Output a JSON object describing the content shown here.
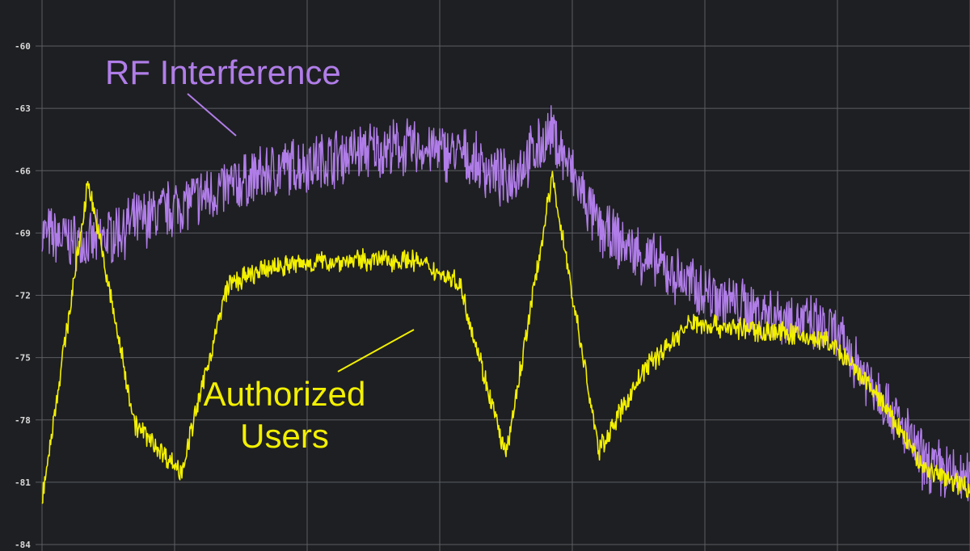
{
  "chart_data": {
    "type": "line",
    "title": "",
    "xlabel": "",
    "ylabel": "",
    "ylim": [
      -84,
      -60
    ],
    "y_ticks": [
      "-60",
      "-63",
      "-66",
      "-69",
      "-72",
      "-75",
      "-78",
      "-81",
      "-84"
    ],
    "grid": true,
    "background": "#1e1f22",
    "grid_color": "#5a5d63",
    "x": [
      0,
      5,
      10,
      15,
      20,
      25,
      30,
      35,
      40,
      45,
      50,
      55,
      60,
      65,
      70,
      75,
      80,
      85,
      90,
      95,
      100
    ],
    "series": [
      {
        "name": "RF Interference",
        "color": "#b07de8",
        "values": [
          -69.0,
          -69.6,
          -68.5,
          -67.6,
          -66.8,
          -66.0,
          -65.5,
          -65.0,
          -64.9,
          -65.2,
          -66.5,
          -64.2,
          -68.8,
          -70.2,
          -71.5,
          -72.5,
          -73.0,
          -73.7,
          -76.5,
          -80.0,
          -81.0
        ],
        "noise": 1.2
      },
      {
        "name": "Authorized Users",
        "color": "#f3f000",
        "values": [
          -81.8,
          -66.5,
          -78.2,
          -80.5,
          -71.5,
          -70.6,
          -70.4,
          -70.3,
          -70.3,
          -71.4,
          -79.8,
          -66.3,
          -79.5,
          -75.5,
          -73.3,
          -73.6,
          -73.8,
          -74.3,
          -76.8,
          -80.3,
          -81.3
        ],
        "noise": 0.45
      }
    ],
    "annotations": [
      {
        "text": "RF Interference",
        "color": "#b07de8",
        "series": "RF Interference"
      },
      {
        "text": "Authorized\nUsers",
        "color": "#f3f000",
        "series": "Authorized Users"
      }
    ]
  }
}
